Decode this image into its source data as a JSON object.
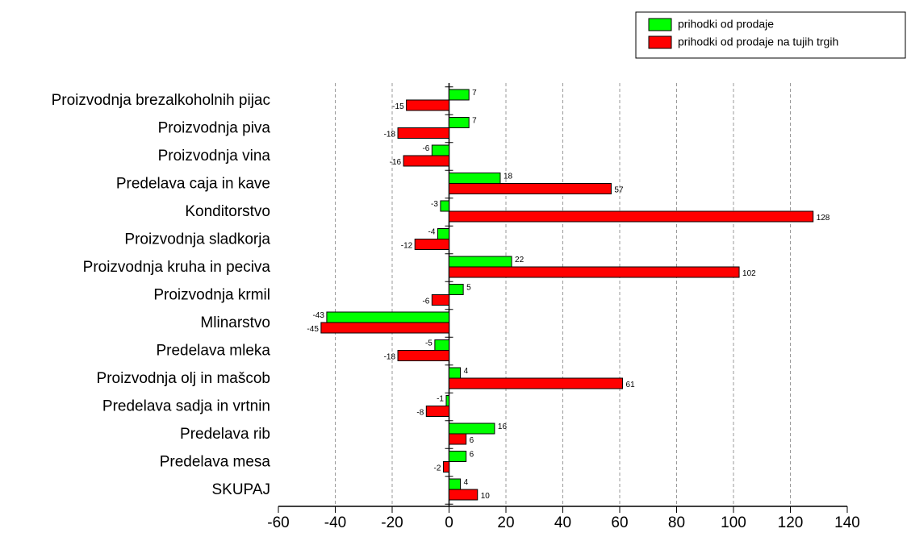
{
  "chart_data": {
    "type": "bar",
    "orientation": "horizontal",
    "categories": [
      "Proizvodnja brezalkoholnih pijac",
      "Proizvodnja piva",
      "Proizvodnja vina",
      "Predelava caja in kave",
      "Konditorstvo",
      "Proizvodnja sladkorja",
      "Proizvodnja kruha in peciva",
      "Proizvodnja krmil",
      "Mlinarstvo",
      "Predelava mleka",
      "Proizvodnja olj in mašcob",
      "Predelava sadja in vrtnin",
      "Predelava rib",
      "Predelava mesa",
      "SKUPAJ"
    ],
    "series": [
      {
        "name": "prihodki od prodaje",
        "color": "#00ff00",
        "values": [
          7,
          7,
          -6,
          18,
          -3,
          -4,
          22,
          5,
          -43,
          -5,
          4,
          -1,
          16,
          6,
          4
        ]
      },
      {
        "name": "prihodki od prodaje na tujih trgih",
        "color": "#ff0000",
        "values": [
          -15,
          -18,
          -16,
          57,
          128,
          -12,
          102,
          -6,
          -45,
          -18,
          61,
          -8,
          6,
          -2,
          10
        ]
      }
    ],
    "xlim": [
      -60,
      140
    ],
    "xticks": [
      -60,
      -40,
      -20,
      0,
      20,
      40,
      60,
      80,
      100,
      120,
      140
    ],
    "grid": true,
    "legend": "top-right"
  }
}
